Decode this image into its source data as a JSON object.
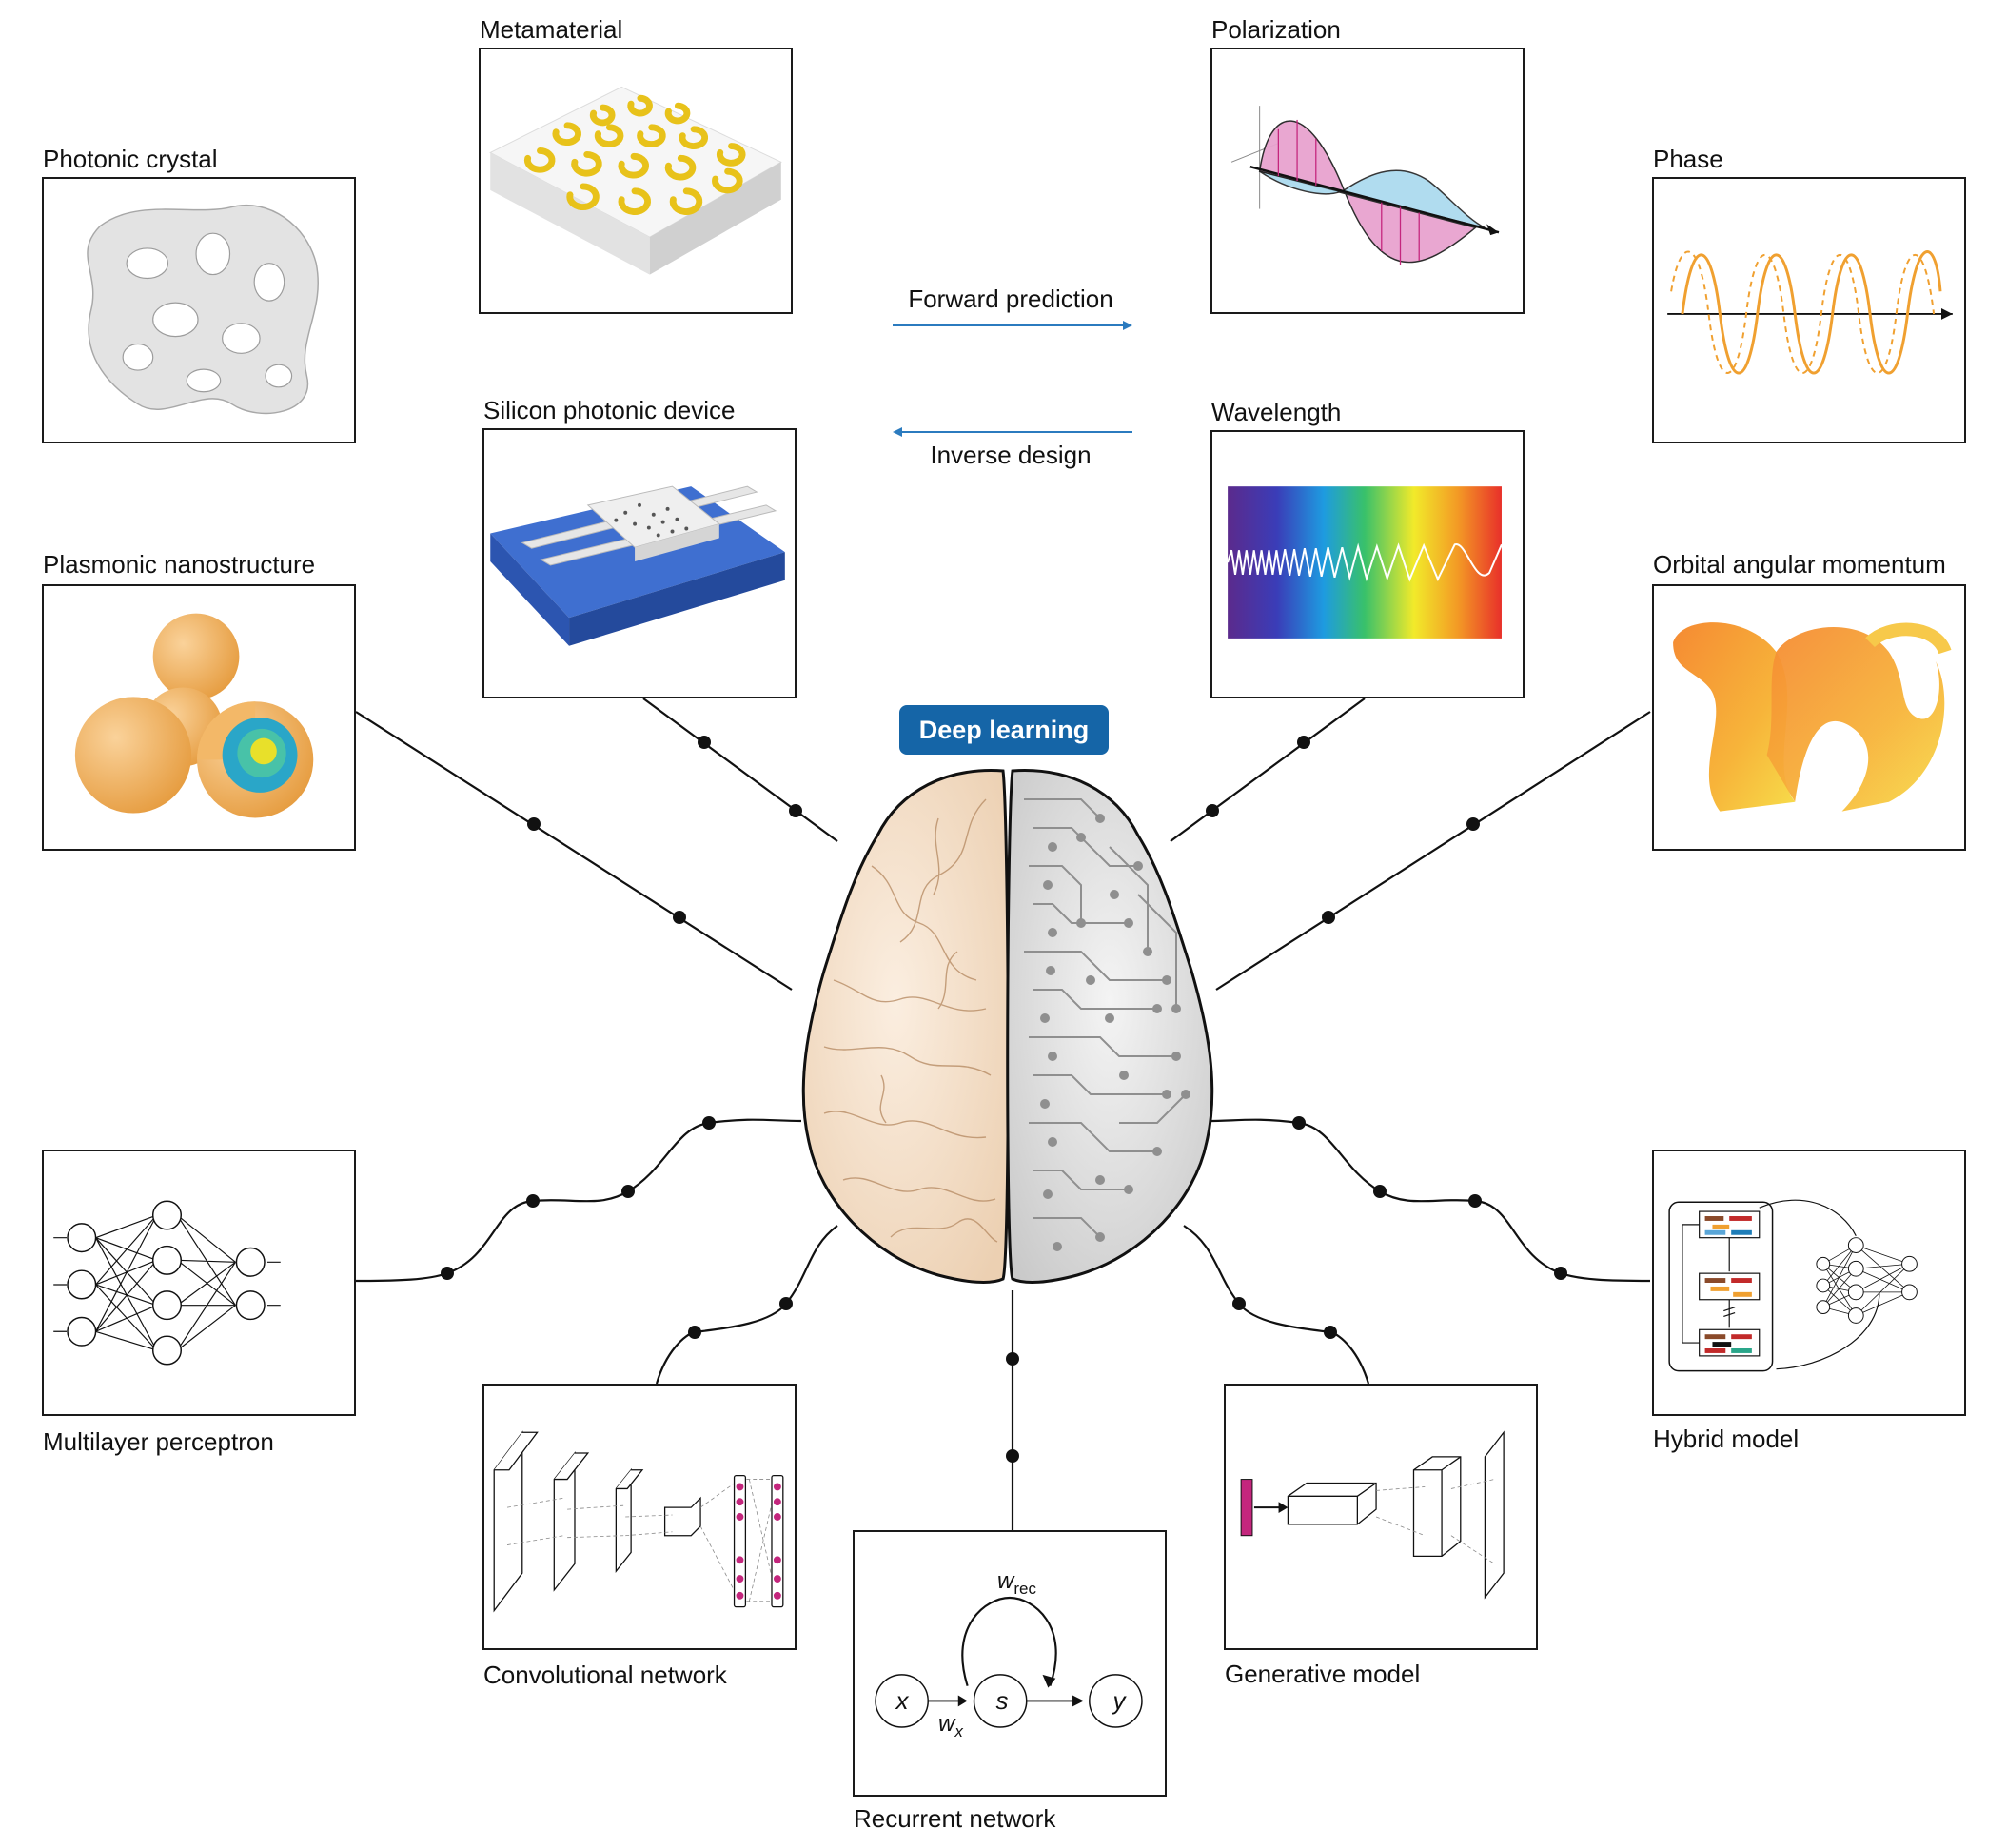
{
  "center": {
    "label": "Deep learning",
    "color": "#1565a7"
  },
  "arrows": {
    "forward": "Forward prediction",
    "inverse": "Inverse design",
    "color": "#2b7bbf"
  },
  "panels": {
    "photonic_crystal": "Photonic crystal",
    "metamaterial": "Metamaterial",
    "polarization": "Polarization",
    "phase": "Phase",
    "silicon_photonic": "Silicon photonic device",
    "wavelength": "Wavelength",
    "plasmonic": "Plasmonic nanostructure",
    "oam": "Orbital angular momentum",
    "mlp": "Multilayer perceptron",
    "hybrid": "Hybrid model",
    "cnn": "Convolutional network",
    "rnn": "Recurrent network",
    "generative": "Generative model"
  },
  "rnn_diagram": {
    "x": "x",
    "s": "s",
    "y": "y",
    "w_rec": "w",
    "w_rec_sub": "rec",
    "w_x": "w",
    "w_x_sub": "x"
  },
  "colors": {
    "gold": "#e8c21a",
    "pink": "#e0559f",
    "cyan": "#53b7d8",
    "orange": "#f0a030",
    "blue_substrate": "#3f6fd0",
    "magenta": "#c4267d",
    "brain_left": "#f6e2cc",
    "brain_right": "#dcdcdc"
  }
}
